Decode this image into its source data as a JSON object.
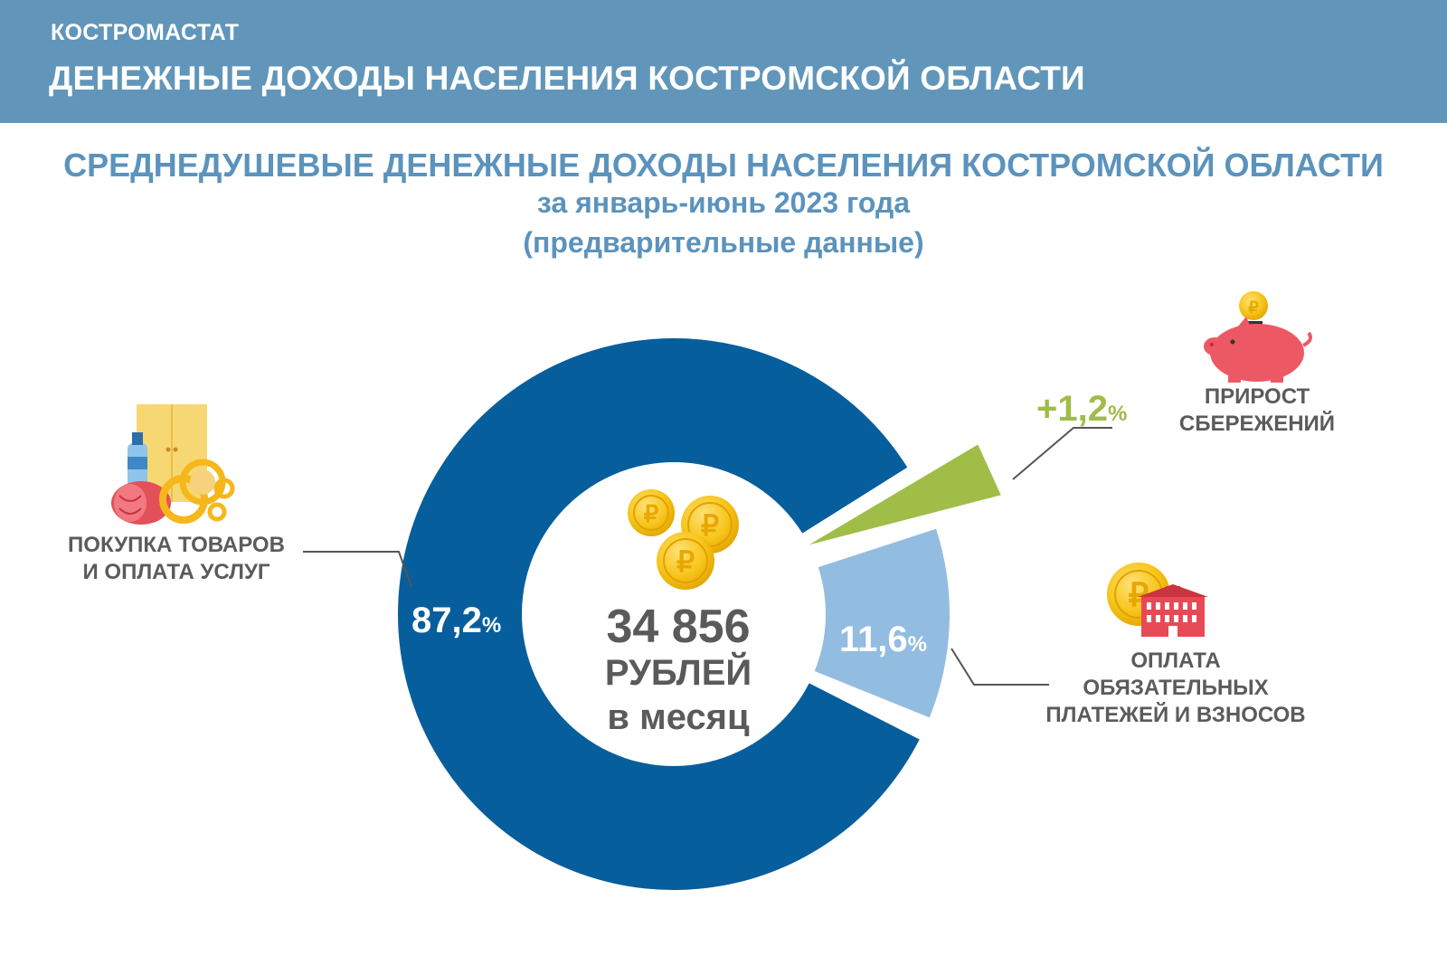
{
  "header": {
    "org": "КОСТРОМАСТАТ",
    "title": "ДЕНЕЖНЫЕ ДОХОДЫ НАСЕЛЕНИЯ КОСТРОМСКОЙ ОБЛАСТИ"
  },
  "colors": {
    "banner": "#6196ba",
    "heading": "#5b93bd",
    "purchases": "#075e9c",
    "payments": "#93bce1",
    "savings": "#9fbd47",
    "coin": "#f5c21b",
    "text": "#5b5b5b"
  },
  "center": {
    "amount": "34 856",
    "unit": "РУБЛЕЙ",
    "period": "в месяц"
  },
  "chart_data": {
    "type": "pie",
    "title": "СРЕДНЕДУШЕВЫЕ ДЕНЕЖНЫЕ ДОХОДЫ НАСЕЛЕНИЯ КОСТРОМСКОЙ ОБЛАСТИ",
    "subtitle_1": "за январь-июнь 2023 года",
    "subtitle_2": "(предварительные данные)",
    "slices": [
      {
        "name": "purchases",
        "label_lines": [
          "ПОКУПКА ТОВАРОВ",
          "И ОПЛАТА УСЛУГ"
        ],
        "value": 87.2,
        "value_text": "87,2",
        "color": "#075e9c",
        "icon": "groceries-icon"
      },
      {
        "name": "payments",
        "label_lines": [
          "ОПЛАТА",
          "ОБЯЗАТЕЛЬНЫХ",
          "ПЛАТЕЖЕЙ И ВЗНОСОВ"
        ],
        "value": 11.6,
        "value_text": "11,6",
        "color": "#93bce1",
        "icon": "building-coin-icon"
      },
      {
        "name": "savings",
        "label_lines": [
          "ПРИРОСТ",
          "СБЕРЕЖЕНИЙ"
        ],
        "value": 1.2,
        "value_text": "+1,2",
        "color": "#9fbd47",
        "icon": "piggy-bank-icon"
      }
    ],
    "percent_sign": "%"
  }
}
